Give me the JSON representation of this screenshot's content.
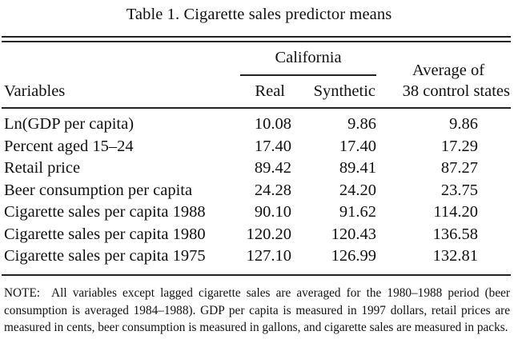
{
  "title": "Table 1.  Cigarette sales predictor means",
  "header": {
    "group_label": "California",
    "variables_label": "Variables",
    "real_label": "Real",
    "synthetic_label": "Synthetic",
    "average_label_line1": "Average of",
    "average_label_line2": "38 control states"
  },
  "rows": [
    {
      "variable": "Ln(GDP per capita)",
      "real": "10.08",
      "synthetic": "9.86",
      "average": "9.86"
    },
    {
      "variable": "Percent aged 15–24",
      "real": "17.40",
      "synthetic": "17.40",
      "average": "17.29"
    },
    {
      "variable": "Retail price",
      "real": "89.42",
      "synthetic": "89.41",
      "average": "87.27"
    },
    {
      "variable": "Beer consumption per capita",
      "real": "24.28",
      "synthetic": "24.20",
      "average": "23.75"
    },
    {
      "variable": "Cigarette sales per capita 1988",
      "real": "90.10",
      "synthetic": "91.62",
      "average": "114.20"
    },
    {
      "variable": "Cigarette sales per capita 1980",
      "real": "120.20",
      "synthetic": "120.43",
      "average": "136.58"
    },
    {
      "variable": "Cigarette sales per capita 1975",
      "real": "127.10",
      "synthetic": "126.99",
      "average": "132.81"
    }
  ],
  "note": {
    "label": "NOTE:",
    "text": "All variables except lagged cigarette sales are averaged for the 1980–1988 period (beer consumption is averaged 1984–1988). GDP per capita is measured in 1997 dollars, retail prices are measured in cents, beer consumption is measured in gallons, and cigarette sales are measured in packs."
  }
}
